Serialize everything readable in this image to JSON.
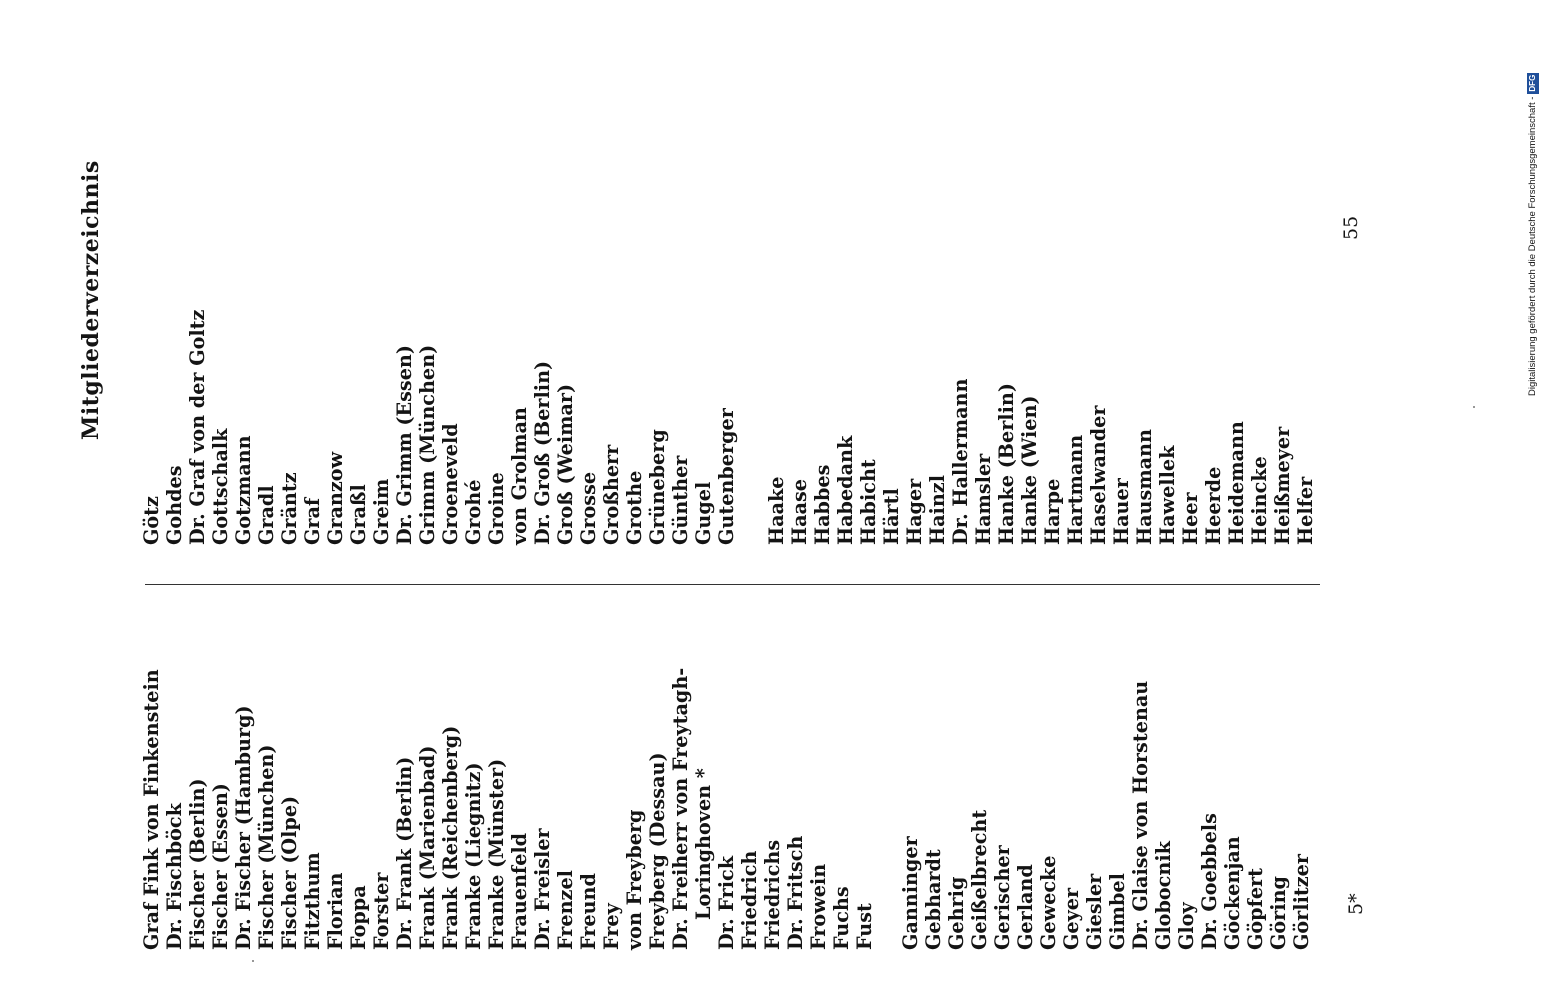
{
  "title": "Mitgliederverzeichnis",
  "columns": {
    "left": [
      "Graf Fink von Finkenstein",
      "Dr. Fischböck",
      "Fischer (Berlin)",
      "Fischer (Essen)",
      "Dr. Fischer (Hamburg)",
      "Fischer (München)",
      "Fischer (Olpe)",
      "Fitzthum",
      "Florian",
      "Foppa",
      "Forster",
      "Dr. Frank (Berlin)",
      "Frank (Marienbad)",
      "Frank (Reichenberg)",
      "Franke (Liegnitz)",
      "Franke (Münster)",
      "Frauenfeld",
      "Dr. Freisler",
      "Frenzel",
      "Freund",
      "Frey",
      "von Freyberg",
      "Freyberg (Dessau)",
      "Dr. Freiherr von Freytagh-",
      "Loringhoven *",
      "Dr. Frick",
      "Friedrich",
      "Friedrichs",
      "Dr. Fritsch",
      "Frowein",
      "Fuchs",
      "Fust",
      "",
      "Ganninger",
      "Gebhardt",
      "Gehrig",
      "Geißelbrecht",
      "Gerischer",
      "Gerland",
      "Gewecke",
      "Geyer",
      "Giesler",
      "Gimbel",
      "Dr. Glaise von Horstenau",
      "Globocnik",
      "Gloy",
      "Dr. Goebbels",
      "Göckenjan",
      "Göpfert",
      "Göring",
      "Görlitzer"
    ],
    "right_top": [
      "Götz",
      "Gohdes",
      "Dr. Graf von der Goltz",
      "Gottschalk",
      "Gotzmann",
      "Gradl",
      "Gräntz",
      "Graf",
      "Granzow",
      "Graßl",
      "Greim",
      "Dr. Grimm (Essen)",
      "Grimm (München)",
      "Groeneveld",
      "Grohé",
      "Groine",
      "von Grolman",
      "Dr. Groß (Berlin)",
      "Groß (Weimar)",
      "Grosse",
      "Großherr",
      "Grothe",
      "Grüneberg",
      "Günther",
      "Gugel",
      "Gutenberger"
    ],
    "right_bottom": [
      "Haake",
      "Haase",
      "Habbes",
      "Habedank",
      "Habicht",
      "Härtl",
      "Hager",
      "Hainzl",
      "Dr. Hallermann",
      "Hamsler",
      "Hanke (Berlin)",
      "Hanke (Wien)",
      "Harpe",
      "Hartmann",
      "Haselwander",
      "Hauer",
      "Hausmann",
      "Hawellek",
      "Heer",
      "Heerde",
      "Heidemann",
      "Heincke",
      "Heißmeyer",
      "Helfer"
    ]
  },
  "page_numbers": {
    "left": "5*",
    "right": "55"
  },
  "credit": {
    "text": "Digitalisierung gefördert durch die Deutsche Forschungsgemeinschaft -",
    "logo": "DFG"
  }
}
